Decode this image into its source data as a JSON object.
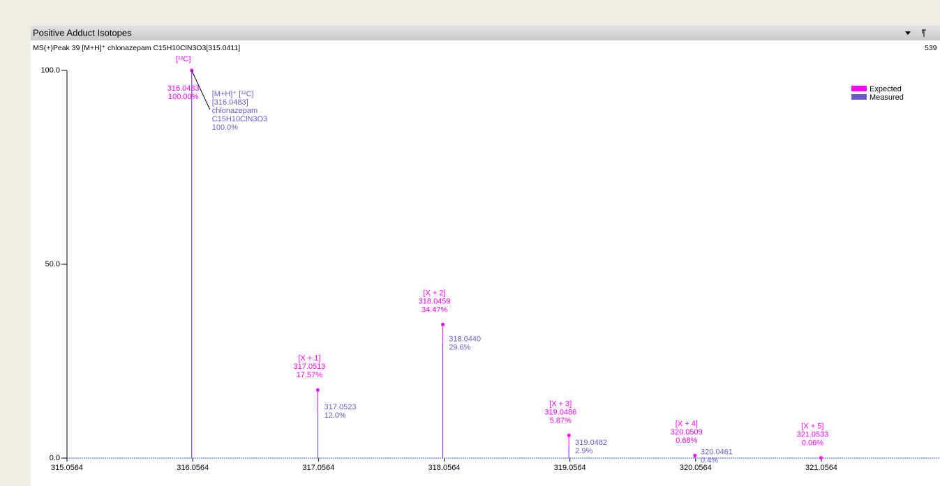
{
  "panel_title": "Positive Adduct Isotopes",
  "subtitle": "MS(+)Peak 39 [M+H]⁺ chlonazepam C15H10ClN3O3[315.0411]",
  "corner_text": "539",
  "chart_data": {
    "type": "stick",
    "xlim": [
      315.0564,
      322.0
    ],
    "ylim": [
      0,
      100
    ],
    "xticks": [
      315.0564,
      316.0564,
      317.0564,
      318.0564,
      319.0564,
      320.0564,
      321.0564
    ],
    "yticks": [
      {
        "value": 0,
        "label": "0.0"
      },
      {
        "value": 50,
        "label": "50.0"
      },
      {
        "value": 100,
        "label": "100.0"
      }
    ],
    "legend": "top-right",
    "series": [
      {
        "name": "Expected",
        "color": "#ff00ff",
        "peak_names": [
          "[¹²C]",
          "[X + 1]",
          "[X + 2]",
          "[X + 3]",
          "[X + 4]",
          "[X + 5]"
        ],
        "x": [
          316.0483,
          317.0513,
          318.0459,
          319.0486,
          320.0509,
          321.0533
        ],
        "x_labels": [
          "316.0483",
          "317.0513",
          "318.0459",
          "319.0486",
          "320.0509",
          "321.0533"
        ],
        "values": [
          100,
          17.57,
          34.47,
          5.87,
          0.68,
          0.06
        ],
        "value_labels": [
          "100.00%",
          "17.57%",
          "34.47%",
          "5.87%",
          "0.68%",
          "0.06%"
        ]
      },
      {
        "name": "Measured",
        "color": "#6a5acd",
        "x": [
          316.0483,
          317.0523,
          318.044,
          319.0482,
          320.0461
        ],
        "x_labels": [
          "[316.0483]",
          "317.0523",
          "318.0440",
          "319.0482",
          "320.0461"
        ],
        "values": [
          100,
          12,
          29.6,
          2.9,
          0.4
        ],
        "value_labels": [
          "100.0%",
          "12.0%",
          "29.6%",
          "2.9%",
          "0.4%"
        ],
        "annotation": [
          "[M+H]⁺ [¹²C]",
          "chlonazepam",
          "C15H10ClN3O3"
        ]
      }
    ]
  }
}
